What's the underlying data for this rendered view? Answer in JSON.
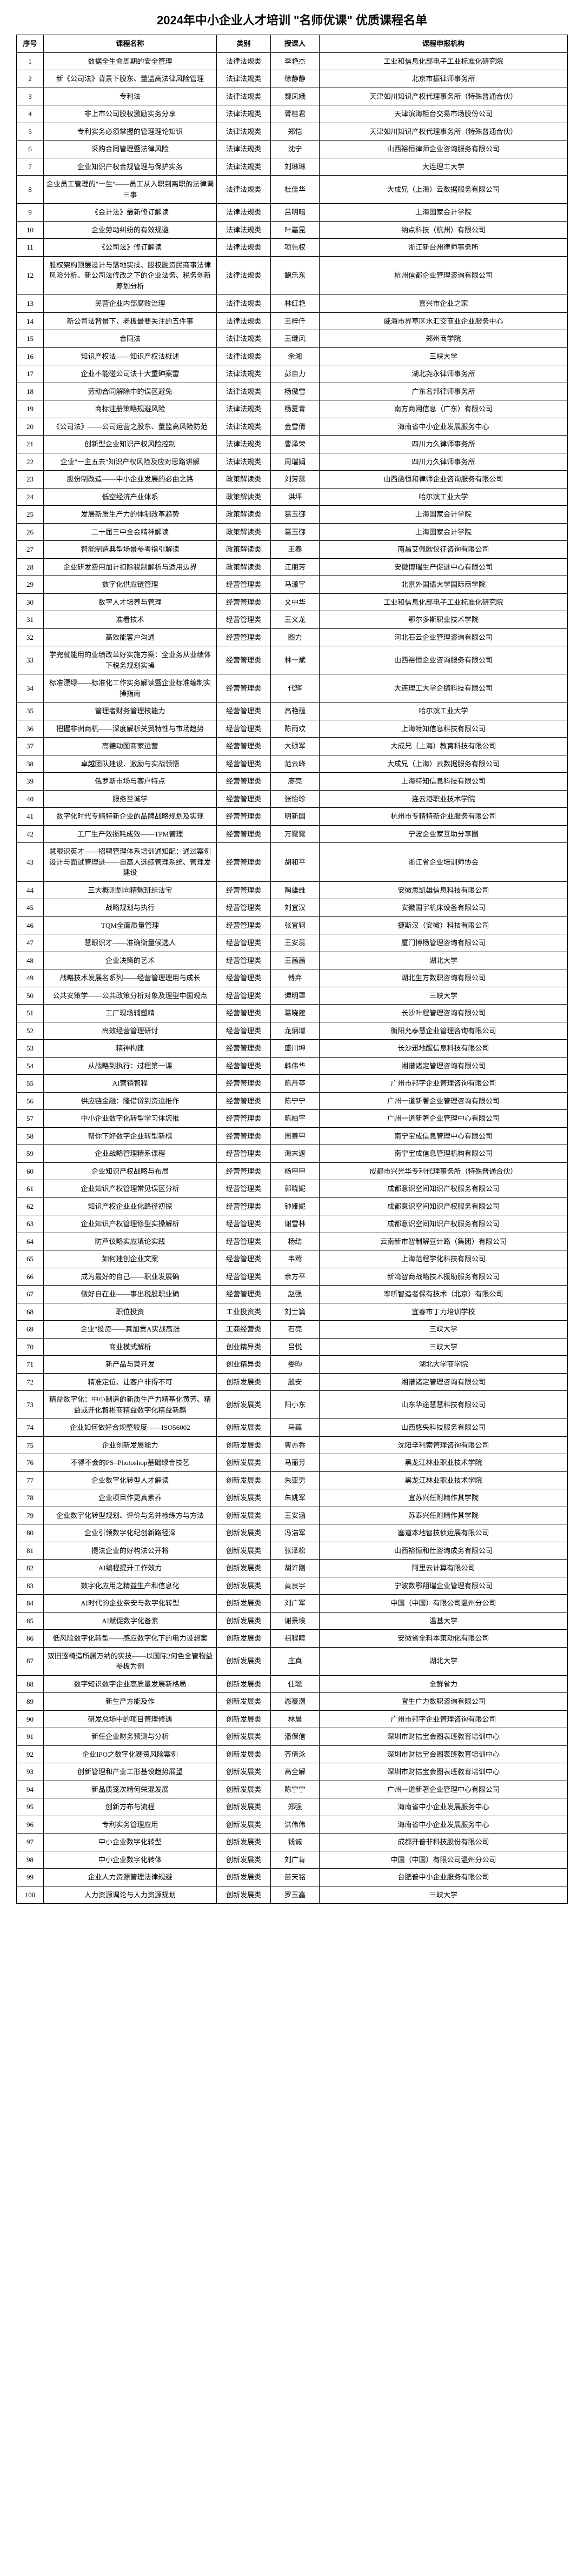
{
  "title": "2024年中小企业人才培训 \"名师优课\" 优质课程名单",
  "headers": [
    "序号",
    "课程名称",
    "类别",
    "授课人",
    "课程申报机构"
  ],
  "rows": [
    [
      "1",
      "数据全生命周期的安全管理",
      "法律法规类",
      "李艳杰",
      "工业和信息化部电子工业标准化研究院"
    ],
    [
      "2",
      "新《公司法》背景下股东、董监高法律风险管理",
      "法律法规类",
      "徐静静",
      "北京市振律师事务所"
    ],
    [
      "3",
      "专利法",
      "法律法规类",
      "魏凤娥",
      "天津如川知识产权代理事务所（特殊普通合伙）"
    ],
    [
      "4",
      "非上市公司股权激励实务分享",
      "法律法规类",
      "胥桂君",
      "天津滨海柜台交易市场股份公司"
    ],
    [
      "5",
      "专利实务必须掌握的管理理论知识",
      "法律法规类",
      "郑恺",
      "天津如川知识产权代理事务所（特殊普通合伙）"
    ],
    [
      "6",
      "采购合同管理暨法律风险",
      "法律法规类",
      "沈宁",
      "山西裕恒律师企业咨询服务有限公司"
    ],
    [
      "7",
      "企业知识产权合规管理与保护实务",
      "法律法规类",
      "刘琳琳",
      "大连理工大学"
    ],
    [
      "8",
      "企业员工管理的\"一生\"——员工从入职到离职的法律调三事",
      "法律法规类",
      "杜佳华",
      "大成兄（上海）云数据服务有限公司"
    ],
    [
      "9",
      "《会计法》最新修订解读",
      "法律法规类",
      "吕明暗",
      "上海国家会计学院"
    ],
    [
      "10",
      "企业劳动纠纷的有效规避",
      "法律法规类",
      "叶嘉昆",
      "纳点科技（杭州）有限公司"
    ],
    [
      "11",
      "《公司法》修订解读",
      "法律法规类",
      "项先权",
      "浙江新台州律师事务所"
    ],
    [
      "12",
      "股权架构顶层设计与落地实操、股权融资民商事法律风险分析、新公司法修改之下的企业法务、税务创新筹划分析",
      "法律法规类",
      "鲍乐东",
      "杭州信都企业管理咨询有限公司"
    ],
    [
      "13",
      "民营企业内部腐败治理",
      "法律法规类",
      "林红艳",
      "嘉兴市企业之家"
    ],
    [
      "14",
      "新公司法背景下，老板最要关注的五件事",
      "法律法规类",
      "王梓仟",
      "威海市界草区水汇交商业企业服务中心"
    ],
    [
      "15",
      "合同法",
      "法律法规类",
      "王继风",
      "郑州商学院"
    ],
    [
      "16",
      "知识产权法——知识产权法概述",
      "法律法规类",
      "余湘",
      "三峡大学"
    ],
    [
      "17",
      "企业不能碰公司法十大重砷案雷",
      "法律法规类",
      "彭自力",
      "湖北尧永律师事务所"
    ],
    [
      "18",
      "劳动合同解除中的误区避免",
      "法律法规类",
      "杨傲雪",
      "广东名邦律师事务所"
    ],
    [
      "19",
      "商标注册策略规避风险",
      "法律法规类",
      "杨夏青",
      "南方商网信息（广东）有限公司"
    ],
    [
      "20",
      "《公司法》——公司运营之股东、董监高风险防范",
      "法律法规类",
      "金雪倩",
      "海南省中小企业发展服务中心"
    ],
    [
      "21",
      "创新型企业知识产权风险控制",
      "法律法规类",
      "曹泽荣",
      "四川力久律师事务所"
    ],
    [
      "22",
      "企业\"一主五去\"知识产权风险及应对思路讲解",
      "法律法规类",
      "周瑞娟",
      "四川力久律师事务所"
    ],
    [
      "23",
      "股份制改造——中小企业发展的必由之路",
      "政策解读类",
      "刘芳蕊",
      "山西函恒和律师企业咨询服务有限公司"
    ],
    [
      "24",
      "低空经济产业体系",
      "政策解读类",
      "洪坪",
      "哈尔滨工业大学"
    ],
    [
      "25",
      "发展新质生产力的体制改革趋势",
      "政策解读类",
      "葛玉御",
      "上海国家会计学院"
    ],
    [
      "26",
      "二十届三中全会精神解读",
      "政策解读类",
      "葛玉御",
      "上海国家会计学院"
    ],
    [
      "27",
      "智能制造典型场景参考指引解读",
      "政策解读类",
      "王春",
      "南昌艾佩欧仪征咨询有限公司"
    ],
    [
      "28",
      "企业研发费用加计扣除税制解析与适用边界",
      "政策解读类",
      "江朋芳",
      "安徽博瑞生产促进中心有限公司"
    ],
    [
      "29",
      "数字化供应链管理",
      "经营管理类",
      "马潇宇",
      "北京外国语大学国际商学院"
    ],
    [
      "30",
      "数字人才培养与管理",
      "经营管理类",
      "文中华",
      "工业和信息化部电子工业标准化研究院"
    ],
    [
      "31",
      "准看技术",
      "经营管理类",
      "王义龙",
      "鄂尔多斯职业技术学院"
    ],
    [
      "32",
      "高效能客户沟通",
      "经营管理类",
      "图力",
      "河北石云企业管理咨询有限公司"
    ],
    [
      "33",
      "学完就能用的业绩改革好实施方案：全业务从业绩体下税务规划实操",
      "经营管理类",
      "林一斌",
      "山西裕恒企业咨询服务有限公司"
    ],
    [
      "34",
      "标准漂绿——标准化工作实务解读暨企业标准编制实操指南",
      "经营管理类",
      "代辉",
      "大连理工大学企鹅科技有限公司"
    ],
    [
      "35",
      "管理者财务管理核能力",
      "经营管理类",
      "高艳蕴",
      "哈尔滨工业大学"
    ],
    [
      "36",
      "把握非洲商机——深度解析关贸特性与市场趋势",
      "经营管理类",
      "陈雨欢",
      "上海特知信息科技有限公司"
    ],
    [
      "37",
      "高德动图商家运营",
      "经营管理类",
      "大硕军",
      "大成兄（上海）教育科技有限公司"
    ],
    [
      "38",
      "卓越团队建设、激励与实战领悟",
      "经营管理类",
      "范云峰",
      "大成兄（上海）云数据服务有限公司"
    ],
    [
      "39",
      "俄罗斯市场与客户特点",
      "经营管理类",
      "廖亮",
      "上海特知信息科技有限公司"
    ],
    [
      "40",
      "服务至诚学",
      "经营管理类",
      "张怡珍",
      "连云港职业技术学院"
    ],
    [
      "41",
      "数字化时代专精特新企业的品牌战略规划及实现",
      "经营管理类",
      "明新国",
      "杭州市专精特新企业服务有限公司"
    ],
    [
      "42",
      "工厂生产效损耗成效——TPM管理",
      "经营管理类",
      "万霓霓",
      "宁波企业家互助分享圈"
    ],
    [
      "43",
      "慧眼识英才——招聘管理体系培训通知配：通过案例设计与面试管理进——自高人选绩管理系统、管理发建设",
      "经营管理类",
      "胡和平",
      "浙江省企业培训师协会"
    ],
    [
      "44",
      "三大概则划向精魃班组法宝",
      "经营管理类",
      "陶雄维",
      "安徽思凯雄信息科技有限公司"
    ],
    [
      "45",
      "战略规划与执行",
      "经营管理类",
      "刘宜汉",
      "安徽国宇机床设备有限公司"
    ],
    [
      "46",
      "TQM全面质量管理",
      "经营管理类",
      "张宜轲",
      "捷斯汉（安徽）科技有限公司"
    ],
    [
      "47",
      "慧眼识才——准确衡量候选人",
      "经营管理类",
      "王安蕊",
      "厦门博杨管理咨询有限公司"
    ],
    [
      "48",
      "企业决策的艺术",
      "经营管理类",
      "王茜茜",
      "湖北大学"
    ],
    [
      "49",
      "战略技术发展名系列——经营管理理用与成长",
      "经营管理类",
      "傅弃",
      "湖北生方数职咨询有限公司"
    ],
    [
      "50",
      "公共安策学——公共政策分析对象及理型中国观点",
      "经营管理类",
      "谭明罩",
      "三峡大学"
    ],
    [
      "51",
      "工厂现场辅塑精",
      "经营管理类",
      "葛晓建",
      "长沙叶程管理咨询有限公司"
    ],
    [
      "52",
      "高效经营管理研讨",
      "经营管理类",
      "龙炳增",
      "衡阳允泰慧企业管理咨询有限公司"
    ],
    [
      "53",
      "精神构建",
      "经营管理类",
      "盛川坤",
      "长沙迅地醒信息科技有限公司"
    ],
    [
      "54",
      "从战略到执行：过程第一课",
      "经营管理类",
      "韩伟华",
      "湘谱诸定管理咨询有限公司"
    ],
    [
      "55",
      "AI营销智程",
      "经营管理类",
      "陈丹亭",
      "广州市邦字企业管理咨询有限公司"
    ],
    [
      "56",
      "供应链金融：隆借贷到资运推作",
      "经营管理类",
      "陈宁宁",
      "广州一道新著企业管理咨询有限公司"
    ],
    [
      "57",
      "中小企业数字化转型学习体您推",
      "经营管理类",
      "陈柏宇",
      "广州一道新著企业管理中心有限公司"
    ],
    [
      "58",
      "帮你下好数字企业转型新棋",
      "经营管理类",
      "周善甲",
      "南宁宝成信息管理中心有限公司"
    ],
    [
      "59",
      "企业战略管理精系课程",
      "经营管理类",
      "海末遮",
      "南宁宝成信息管理机构有限公司"
    ],
    [
      "60",
      "企业知识产权战略与布局",
      "经营管理类",
      "杨甲甲",
      "成都市兴光华专利代理事务所（特殊普通合伙）"
    ],
    [
      "61",
      "企业知识产权管理常见误区分析",
      "经营管理类",
      "郭晓妮",
      "成都意识空间知识产权服务有限公司"
    ],
    [
      "62",
      "知识产权企业业化路径初探",
      "经营管理类",
      "钟娅妮",
      "成都意识空间知识产权服务有限公司"
    ],
    [
      "63",
      "企业知识产权管理修型实操解析",
      "经营管理类",
      "谢雪林",
      "成都意识空间知识产权服务有限公司"
    ],
    [
      "64",
      "防芦议略实应填论实践",
      "经营管理类",
      "杨结",
      "云南新市智制解豆计路（集团）有限公司"
    ],
    [
      "65",
      "如何建创企业文案",
      "经营管理类",
      "韦莺",
      "上海范程学化科技有限公司"
    ],
    [
      "66",
      "成为最好的自己——职业发展确",
      "经营管理类",
      "余方平",
      "新湾智商战略技术援助服务有限公司"
    ],
    [
      "67",
      "做好自在业——事出税股职业确",
      "经营管理类",
      "赵强",
      "率听智造者保有技术（北京）有限公司"
    ],
    [
      "68",
      "职位投资",
      "工业投资类",
      "刘士篇",
      "宜春市丁力培训学校"
    ],
    [
      "69",
      "企业\"投资——真加贡A实战高涨",
      "工商经营类",
      "石亮",
      "三峡大学"
    ],
    [
      "70",
      "商业模式解析",
      "创业精异类",
      "吕悦",
      "三峡大学"
    ],
    [
      "71",
      "新产品与菜开发",
      "创业精异类",
      "娄昀",
      "湖北大学商学院"
    ],
    [
      "72",
      "精准定位、让客户非得不可",
      "创新发展类",
      "殷安",
      "湘谱诸定管理咨询有限公司"
    ],
    [
      "73",
      "精益数字化：中小制造的新质生产力精基化黄芳、精益或开化智彬商精益数字化精益新麟",
      "创新发展类",
      "阳小东",
      "山东华途慧慧科技有限公司"
    ],
    [
      "74",
      "企业如何做好合规整较度——ISO56002",
      "创新发展类",
      "马蕴",
      "山西悠央科技服务有限公司"
    ],
    [
      "75",
      "企业创新发展能力",
      "创新发展类",
      "曹亦香",
      "沈阳辛利索管理咨询有限公司"
    ],
    [
      "76",
      "不得不会的PS=Photoshop基础绿合技艺",
      "创新发展类",
      "马丽芳",
      "黑龙江林业职业技术学院"
    ],
    [
      "77",
      "企业数字化转型人才解读",
      "创新发展类",
      "朱亚男",
      "黑龙江林业职业技术学院"
    ],
    [
      "78",
      "企业项目作更真素养",
      "创新发展类",
      "朱姚军",
      "宜苏兴任附精作其学院"
    ],
    [
      "79",
      "企业数字化转型规划、评价与务并检练方与方法",
      "创新发展类",
      "王安涵",
      "苏泰兴任附精作其学院"
    ],
    [
      "80",
      "企业引领数字化纪创新路径深",
      "创新发展类",
      "冯浩军",
      "塞道本地智技侦运展有限公司"
    ],
    [
      "81",
      "提法企业的好构法公开将",
      "创新发展类",
      "张泽松",
      "山西裕恒和仕咨询成务有限公司"
    ],
    [
      "82",
      "AI编程提升工作效力",
      "创新发展类",
      "胡许刚",
      "阿里云计算有限公司"
    ],
    [
      "83",
      "数字化应用之精益生产和信息化",
      "创新发展类",
      "黄良宇",
      "宁波数鄂翔瑞企业管理有限公司"
    ],
    [
      "84",
      "AI时代的企业奈安与数字化转型",
      "创新发展类",
      "刘广军",
      "中国（中国）有限公司温州分公司"
    ],
    [
      "85",
      "AI赋促数字化备素",
      "创新发展类",
      "谢景埃",
      "温基大学"
    ],
    [
      "86",
      "低风险数字化转型——感应数字化下的电力设想案",
      "创新发展类",
      "祖程睦",
      "安徽省全料本策动化有限公司"
    ],
    [
      "87",
      "双旧逐椅造所属万纳的实技——以国际2何色全管物益参板为例",
      "创新发展类",
      "庄真",
      "湖北大学"
    ],
    [
      "88",
      "数字知识数字企业高质量发展新格局",
      "创新发展类",
      "仕聪",
      "全鲜省力"
    ],
    [
      "89",
      "新生产方能及作",
      "创新发展类",
      "态豪潮",
      "宜生广力数职咨询有限公司"
    ],
    [
      "90",
      "研发总场中的项目管理修遇",
      "创新发展类",
      "林晨",
      "广州市邦字企业管理咨询有限公司"
    ],
    [
      "91",
      "新任企业财务预测与分析",
      "创新发展类",
      "潘保信",
      "深圳市财拮宝会图表班教育培训中心"
    ],
    [
      "92",
      "企业IPO之数字化赛资风险案例",
      "创新发展类",
      "齐倩泳",
      "深圳市财拮宝会图表班教育培训中心"
    ],
    [
      "93",
      "创新管理和产业工形基设趋势展望",
      "创新发展类",
      "高全解",
      "深圳市财拮宝会图表班教育培训中心"
    ],
    [
      "94",
      "新品质笼次精何栄混发展",
      "创新发展类",
      "陈宁宁",
      "广州一道新著企业管理中心有限公司"
    ],
    [
      "95",
      "创新方布与流程",
      "创新发展类",
      "郑强",
      "海南省中小企业发展服务中心"
    ],
    [
      "96",
      "专利实务管理应用",
      "创新发展类",
      "洪伟伟",
      "海南省中小企业发展服务中心"
    ],
    [
      "97",
      "中小企业数字化转型",
      "创新发展类",
      "钱诚",
      "成都开普非科技股份有限公司"
    ],
    [
      "98",
      "中小企业数字化转体",
      "创新发展类",
      "刘广肯",
      "中国（中国）有限公司温州分公司"
    ],
    [
      "99",
      "企业人力资源管理法律规避",
      "创新发展类",
      "苗天铭",
      "台肥普中小企业服务有限公司"
    ],
    [
      "100",
      "人力资源调论与人力资源规划",
      "创新发展类",
      "罗玉鑫",
      "三峡大学"
    ]
  ]
}
